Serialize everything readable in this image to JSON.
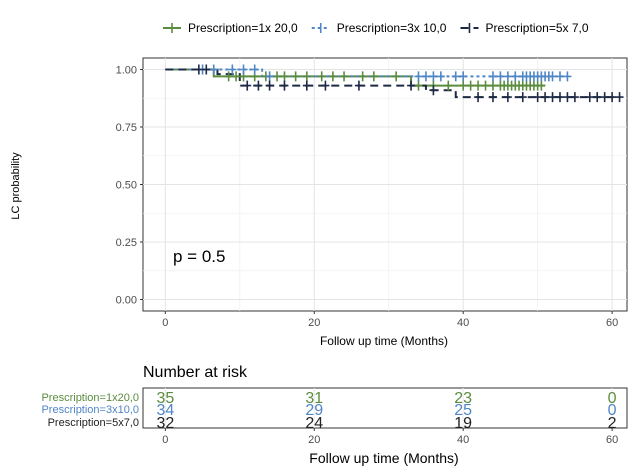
{
  "chart_data": [
    {
      "type": "line",
      "subtype": "kaplan-meier",
      "title": "",
      "xlabel": "Follow up time (Months)",
      "ylabel": "LC probability",
      "xlim": [
        -3,
        62
      ],
      "ylim": [
        -0.05,
        1.05
      ],
      "x_ticks": [
        0,
        20,
        40,
        60
      ],
      "x_tick_labels": [
        "0",
        "20",
        "40",
        "60"
      ],
      "y_ticks": [
        0,
        0.25,
        0.5,
        0.75,
        1.0
      ],
      "y_tick_labels": [
        "0.00",
        "0.25",
        "0.50",
        "0.75",
        "1.00"
      ],
      "grid": true,
      "legend_position": "top",
      "annotation": "p = 0.5",
      "series": [
        {
          "name": "Prescription=1x 20,0",
          "color": "#5b8c3e",
          "line_style": "solid",
          "steps": [
            [
              0,
              1.0
            ],
            [
              6.5,
              1.0
            ],
            [
              6.5,
              0.97
            ],
            [
              33,
              0.97
            ],
            [
              33,
              0.93
            ],
            [
              51,
              0.93
            ]
          ],
          "censor_x": [
            8.5,
            9.5,
            10.5,
            12,
            13.5,
            15,
            16,
            17.5,
            19,
            21,
            22.5,
            24,
            26.5,
            28,
            31,
            34,
            36,
            38,
            40,
            41,
            42,
            43,
            44,
            45,
            45.5,
            46,
            46.5,
            47,
            47.5,
            48,
            48.5,
            49,
            49.5,
            50,
            50.5
          ]
        },
        {
          "name": "Prescription=3x 10,0",
          "color": "#4f86c6",
          "line_style": "dotted",
          "steps": [
            [
              0,
              1.0
            ],
            [
              13,
              1.0
            ],
            [
              13,
              0.97
            ],
            [
              54,
              0.97
            ]
          ],
          "censor_x": [
            5,
            6.5,
            9,
            10.5,
            12,
            14,
            34,
            35,
            36,
            37,
            39,
            40,
            44,
            45,
            46,
            47,
            48,
            48.5,
            49,
            49.5,
            50,
            50.5,
            51,
            51.5,
            52,
            53,
            54
          ]
        },
        {
          "name": "Prescription=5x 7,0",
          "color": "#1e2a45",
          "line_style": "dashed",
          "steps": [
            [
              0,
              1.0
            ],
            [
              7,
              1.0
            ],
            [
              7,
              0.98
            ],
            [
              10,
              0.98
            ],
            [
              10,
              0.93
            ],
            [
              35,
              0.93
            ],
            [
              35,
              0.91
            ],
            [
              39,
              0.91
            ],
            [
              39,
              0.88
            ],
            [
              61,
              0.88
            ]
          ],
          "censor_x": [
            4.5,
            5.5,
            11,
            12.5,
            14,
            16,
            19,
            21.5,
            26,
            33,
            36,
            42,
            44,
            46,
            48,
            50,
            51,
            52,
            53,
            54,
            55,
            57,
            58,
            59,
            60,
            61
          ]
        }
      ]
    },
    {
      "type": "table",
      "title": "Number at risk",
      "xlabel": "Follow up time (Months)",
      "x_ticks": [
        0,
        20,
        40,
        60
      ],
      "x_tick_labels": [
        "0",
        "20",
        "40",
        "60"
      ],
      "rows": [
        {
          "label": "Prescription=1x20,0",
          "color": "#5b8c3e",
          "counts": [
            "35",
            "31",
            "23",
            "0"
          ]
        },
        {
          "label": "Prescription=3x10,0",
          "color": "#4f86c6",
          "counts": [
            "34",
            "29",
            "25",
            "0"
          ]
        },
        {
          "label": "Prescription=5x7,0",
          "color": "#222222",
          "counts": [
            "32",
            "24",
            "19",
            "2"
          ]
        }
      ]
    }
  ]
}
